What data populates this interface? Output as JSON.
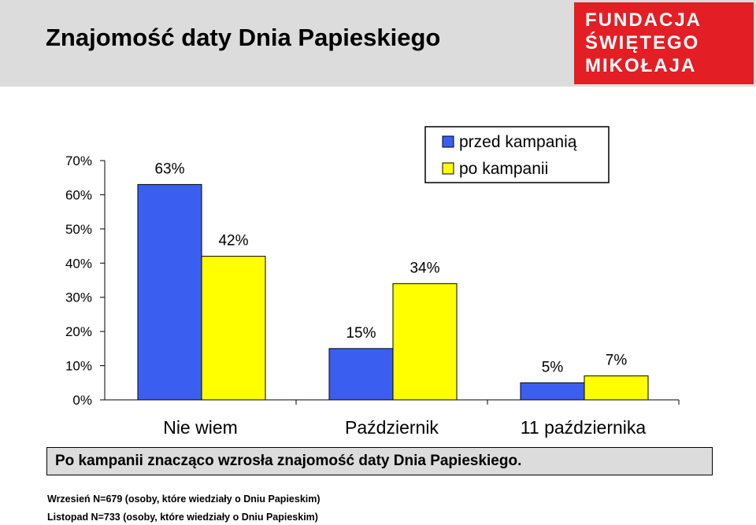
{
  "header": {
    "title": "Znajomość daty Dnia Papieskiego",
    "logo_lines": [
      "FUNDACJA",
      "ŚWIĘTEGO",
      "MIKOŁAJA"
    ],
    "band_color": "#dcdcdc",
    "logo_color": "#e31e24"
  },
  "chart_data": {
    "type": "bar",
    "categories": [
      "Nie wiem",
      "Październik",
      "11 października"
    ],
    "series": [
      {
        "name": "przed kampanią",
        "values": [
          63,
          15,
          5
        ],
        "labels": [
          "63%",
          "15%",
          "5%"
        ],
        "color": "#3a5ff0"
      },
      {
        "name": "po kampanii",
        "values": [
          42,
          34,
          7
        ],
        "labels": [
          "42%",
          "34%",
          "7%"
        ],
        "color": "#ffff00"
      }
    ],
    "yticks": [
      "0%",
      "10%",
      "20%",
      "30%",
      "40%",
      "50%",
      "60%",
      "70%"
    ],
    "ylim": [
      0,
      70
    ],
    "grid": false,
    "legend": "top-right"
  },
  "summary": "Po kampanii znacząco wzrosła znajomość daty Dnia Papieskiego.",
  "notes": [
    "Wrzesień N=679 (osoby, które wiedziały o Dniu Papieskim)",
    "Listopad N=733 (osoby, które wiedziały o Dniu Papieskim)"
  ]
}
